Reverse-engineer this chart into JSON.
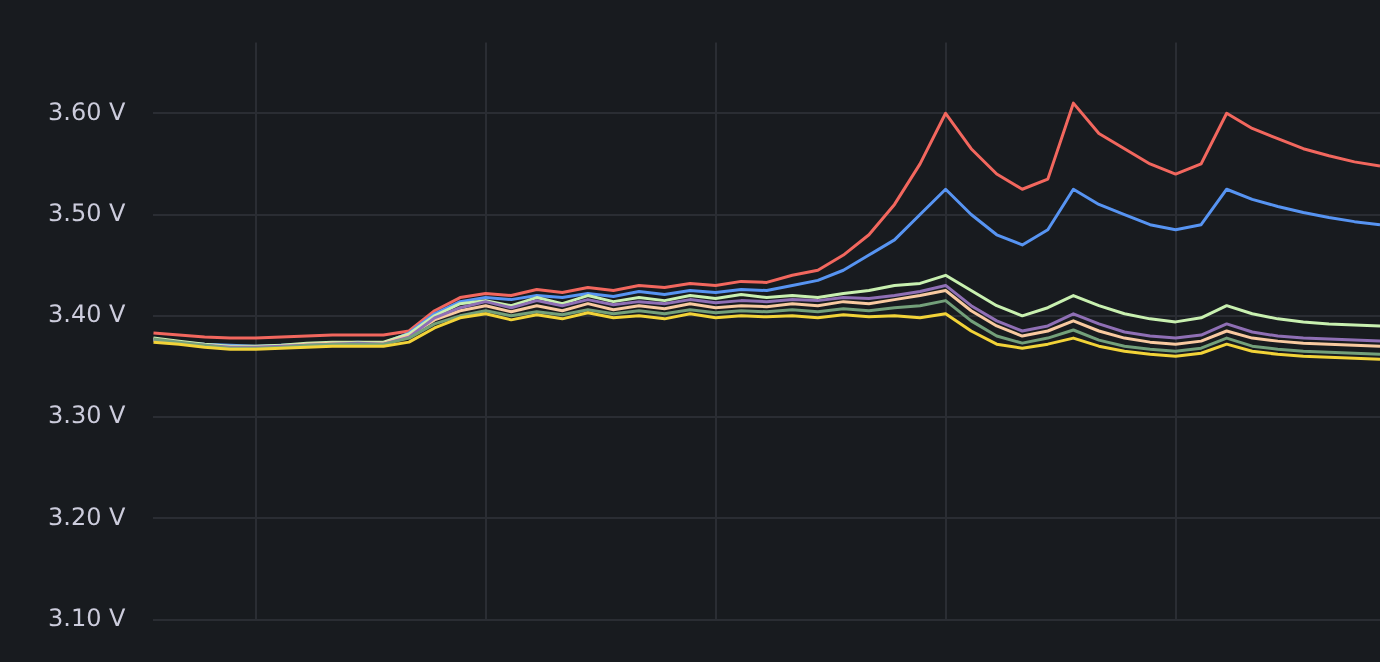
{
  "chart_data": {
    "type": "line",
    "categories": [
      null,
      null,
      null,
      null,
      null,
      null,
      null,
      null,
      null,
      null,
      null,
      null,
      null,
      null,
      null,
      null,
      null,
      null,
      null,
      null,
      null,
      null,
      null,
      null,
      null,
      null,
      null,
      null,
      null,
      null,
      null,
      null,
      null,
      null,
      null,
      null,
      null,
      null,
      null,
      null,
      null,
      null,
      null,
      null,
      null,
      null,
      null,
      null,
      null
    ],
    "series": [
      {
        "color": "#f2d338",
        "values": [
          3.374,
          3.372,
          3.369,
          3.367,
          3.367,
          3.368,
          3.369,
          3.37,
          3.37,
          3.37,
          3.374,
          3.388,
          3.398,
          3.402,
          3.396,
          3.401,
          3.397,
          3.403,
          3.398,
          3.4,
          3.397,
          3.402,
          3.398,
          3.4,
          3.399,
          3.4,
          3.398,
          3.401,
          3.399,
          3.4,
          3.398,
          3.402,
          3.385,
          3.372,
          3.368,
          3.372,
          3.378,
          3.37,
          3.365,
          3.362,
          3.36,
          3.363,
          3.372,
          3.365,
          3.362,
          3.36,
          3.359,
          3.358,
          3.357
        ]
      },
      {
        "color": "#73a07a",
        "values": [
          3.377,
          3.374,
          3.371,
          3.368,
          3.368,
          3.369,
          3.371,
          3.372,
          3.372,
          3.372,
          3.378,
          3.392,
          3.4,
          3.405,
          3.4,
          3.404,
          3.401,
          3.406,
          3.402,
          3.405,
          3.402,
          3.406,
          3.403,
          3.405,
          3.404,
          3.406,
          3.404,
          3.407,
          3.405,
          3.408,
          3.41,
          3.415,
          3.395,
          3.38,
          3.373,
          3.378,
          3.386,
          3.376,
          3.37,
          3.367,
          3.365,
          3.368,
          3.378,
          3.37,
          3.367,
          3.365,
          3.364,
          3.363,
          3.362
        ]
      },
      {
        "color": "#8f6fb5",
        "values": [
          3.376,
          3.373,
          3.371,
          3.369,
          3.369,
          3.37,
          3.371,
          3.372,
          3.373,
          3.372,
          3.379,
          3.398,
          3.408,
          3.414,
          3.408,
          3.415,
          3.41,
          3.416,
          3.411,
          3.414,
          3.412,
          3.416,
          3.413,
          3.415,
          3.414,
          3.416,
          3.415,
          3.418,
          3.417,
          3.42,
          3.424,
          3.43,
          3.41,
          3.395,
          3.385,
          3.39,
          3.402,
          3.392,
          3.384,
          3.38,
          3.378,
          3.381,
          3.392,
          3.384,
          3.38,
          3.378,
          3.377,
          3.376,
          3.375
        ]
      },
      {
        "color": "#f8c9a0",
        "values": [
          3.377,
          3.374,
          3.371,
          3.369,
          3.369,
          3.37,
          3.372,
          3.373,
          3.373,
          3.373,
          3.38,
          3.396,
          3.405,
          3.41,
          3.404,
          3.41,
          3.405,
          3.412,
          3.406,
          3.41,
          3.407,
          3.412,
          3.408,
          3.41,
          3.409,
          3.412,
          3.41,
          3.414,
          3.412,
          3.416,
          3.42,
          3.425,
          3.405,
          3.39,
          3.38,
          3.385,
          3.395,
          3.385,
          3.378,
          3.374,
          3.372,
          3.375,
          3.385,
          3.378,
          3.375,
          3.373,
          3.372,
          3.371,
          3.37
        ]
      },
      {
        "color": "#c8f0b0",
        "values": [
          3.378,
          3.375,
          3.372,
          3.37,
          3.37,
          3.371,
          3.373,
          3.374,
          3.374,
          3.374,
          3.382,
          3.4,
          3.412,
          3.415,
          3.41,
          3.418,
          3.412,
          3.42,
          3.414,
          3.418,
          3.415,
          3.42,
          3.417,
          3.421,
          3.418,
          3.42,
          3.418,
          3.422,
          3.425,
          3.43,
          3.432,
          3.44,
          3.425,
          3.41,
          3.4,
          3.408,
          3.42,
          3.41,
          3.402,
          3.397,
          3.394,
          3.398,
          3.41,
          3.402,
          3.397,
          3.394,
          3.392,
          3.391,
          3.39
        ]
      },
      {
        "color": "#5794f2",
        "values": [
          3.376,
          3.374,
          3.372,
          3.371,
          3.37,
          3.371,
          3.372,
          3.373,
          3.374,
          3.373,
          3.383,
          3.402,
          3.414,
          3.418,
          3.416,
          3.42,
          3.418,
          3.422,
          3.419,
          3.424,
          3.421,
          3.425,
          3.423,
          3.426,
          3.425,
          3.43,
          3.435,
          3.445,
          3.46,
          3.475,
          3.5,
          3.525,
          3.5,
          3.48,
          3.47,
          3.485,
          3.525,
          3.51,
          3.5,
          3.49,
          3.485,
          3.49,
          3.525,
          3.515,
          3.508,
          3.502,
          3.497,
          3.493,
          3.49
        ]
      },
      {
        "color": "#f2675e",
        "values": [
          3.383,
          3.381,
          3.379,
          3.378,
          3.378,
          3.379,
          3.38,
          3.381,
          3.381,
          3.381,
          3.385,
          3.405,
          3.418,
          3.422,
          3.42,
          3.426,
          3.423,
          3.428,
          3.425,
          3.43,
          3.428,
          3.432,
          3.43,
          3.434,
          3.433,
          3.44,
          3.445,
          3.46,
          3.48,
          3.51,
          3.55,
          3.6,
          3.565,
          3.54,
          3.525,
          3.535,
          3.61,
          3.58,
          3.565,
          3.55,
          3.54,
          3.55,
          3.6,
          3.585,
          3.575,
          3.565,
          3.558,
          3.552,
          3.548
        ]
      }
    ],
    "ylim": [
      3.1,
      3.67
    ],
    "yticks": [
      {
        "value": 3.1,
        "label": "3.10 V"
      },
      {
        "value": 3.2,
        "label": "3.20 V"
      },
      {
        "value": 3.3,
        "label": "3.30 V"
      },
      {
        "value": 3.4,
        "label": "3.40 V"
      },
      {
        "value": 3.5,
        "label": "3.50 V"
      },
      {
        "value": 3.6,
        "label": "3.60 V"
      }
    ],
    "tick_labels": "y",
    "grid": true,
    "legend": false,
    "marker": "none",
    "line_style": "solid"
  }
}
